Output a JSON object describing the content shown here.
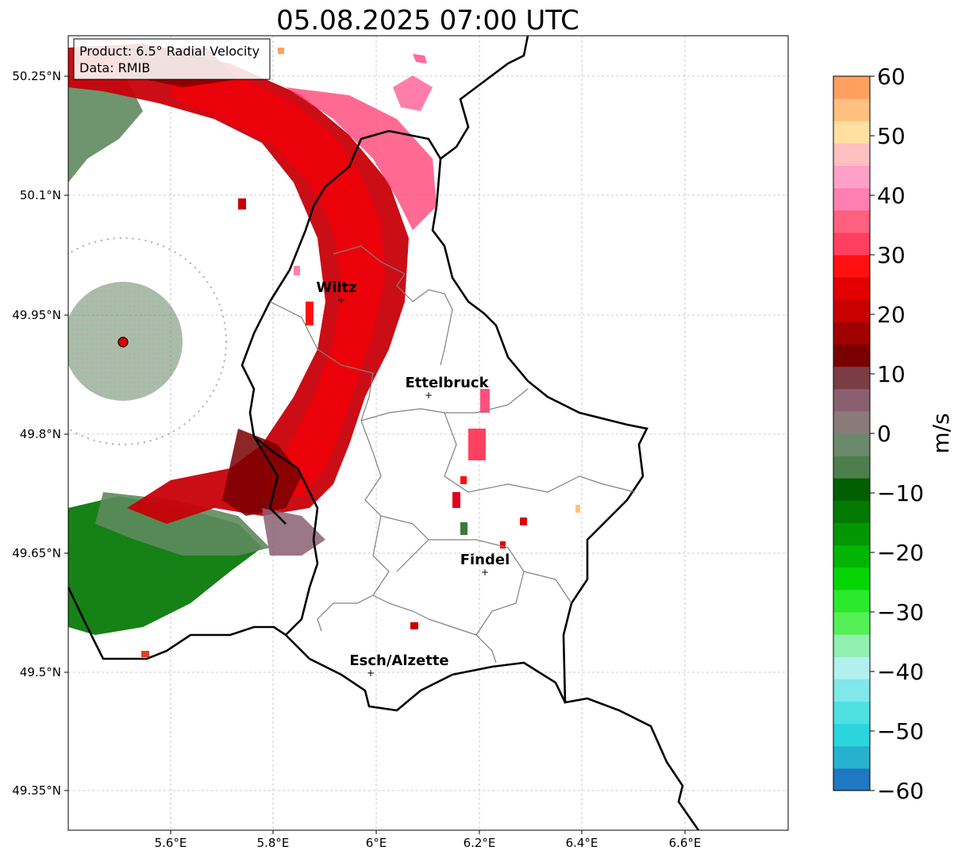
{
  "title": "05.08.2025 07:00 UTC",
  "info_box": {
    "line1": "Product: 6.5° Radial Velocity",
    "line2": "Data: RMIB"
  },
  "x_axis": {
    "ticks": [
      "5.6°E",
      "5.8°E",
      "6°E",
      "6.2°E",
      "6.4°E",
      "6.6°E"
    ]
  },
  "y_axis": {
    "ticks": [
      "50.25°N",
      "50.1°N",
      "49.95°N",
      "49.8°N",
      "49.65°N",
      "49.5°N",
      "49.35°N"
    ]
  },
  "cities": [
    {
      "name": "Wiltz"
    },
    {
      "name": "Ettelbruck"
    },
    {
      "name": "Findel"
    },
    {
      "name": "Esch/Alzette"
    }
  ],
  "colorbar": {
    "label": "m/s",
    "ticks": [
      "60",
      "50",
      "40",
      "30",
      "20",
      "10",
      "0",
      "−10",
      "−20",
      "−30",
      "−40",
      "−50",
      "−60"
    ],
    "range": [
      -60,
      60
    ],
    "colors": [
      "#1f78c1",
      "#26b2cf",
      "#2ad6dc",
      "#4fe0e2",
      "#80e8ea",
      "#b2f0f0",
      "#8ff0b0",
      "#55f055",
      "#2de92d",
      "#05d505",
      "#03b503",
      "#039603",
      "#027a02",
      "#005f00",
      "#4e7e4e",
      "#6b8a6b",
      "#8a7a7a",
      "#8a6070",
      "#7a3d45",
      "#7a0000",
      "#a00000",
      "#c80000",
      "#e20000",
      "#ff1010",
      "#ff4060",
      "#ff6080",
      "#ff80b0",
      "#ffa0c8",
      "#ffc0c0",
      "#ffe0a0",
      "#ffc080",
      "#ffa060"
    ]
  },
  "radar_marker_color": "#e00000"
}
